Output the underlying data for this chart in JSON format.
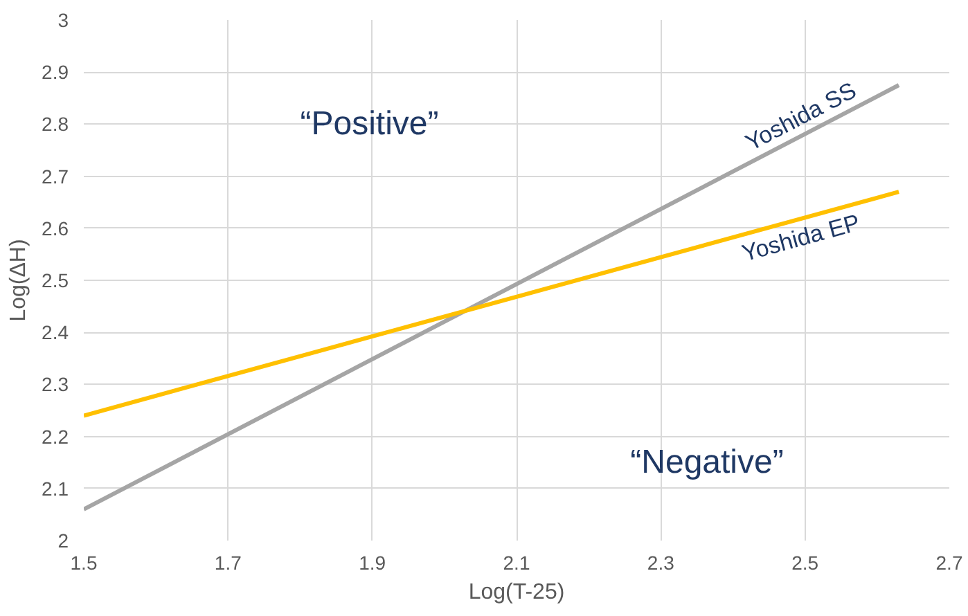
{
  "chart_data": {
    "type": "line",
    "xlabel": "Log(T-25)",
    "ylabel": "Log(ΔH)",
    "x": [
      1.5,
      2.63
    ],
    "series": [
      {
        "name": "Yoshida SS",
        "color": "#a5a5a5",
        "values": [
          2.06,
          2.875
        ]
      },
      {
        "name": "Yoshida EP",
        "color": "#ffc000",
        "values": [
          2.24,
          2.67
        ]
      }
    ],
    "annotations": [
      "“Positive”",
      "“Negative”"
    ],
    "xlim": [
      1.5,
      2.7
    ],
    "xticks": [
      1.5,
      1.7,
      1.9,
      2.1,
      2.3,
      2.5,
      2.7
    ],
    "ylim": [
      2,
      3
    ],
    "yticks": [
      2,
      2.1,
      2.2,
      2.3,
      2.4,
      2.5,
      2.6,
      2.7,
      2.8,
      2.9,
      3
    ],
    "grid": true
  }
}
